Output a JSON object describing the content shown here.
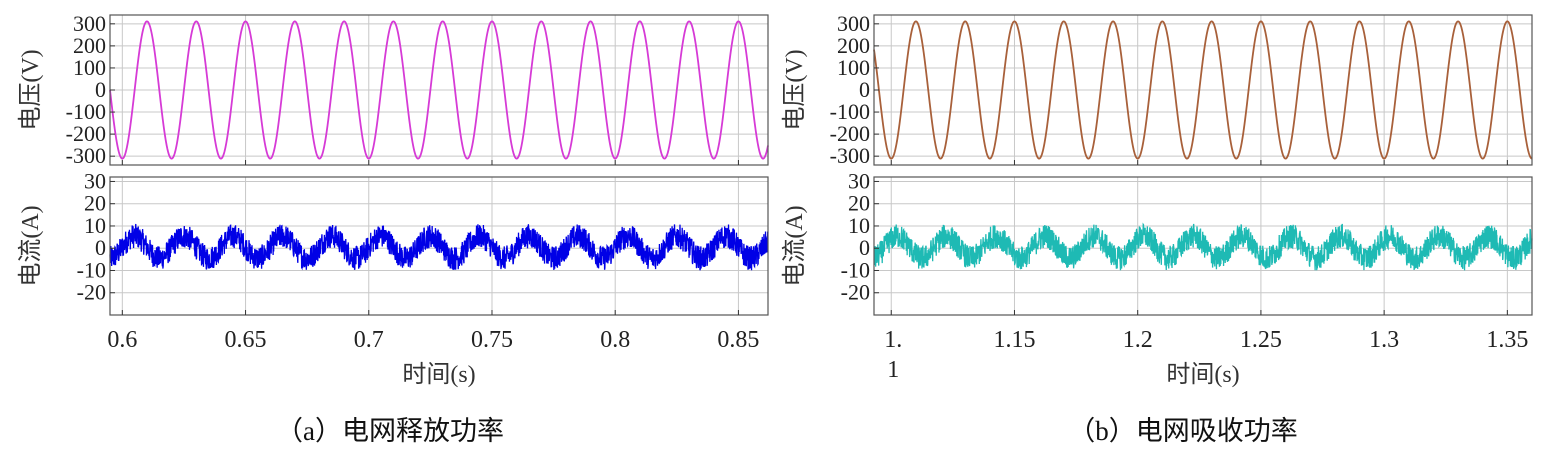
{
  "chart_data": [
    {
      "panel": "a",
      "caption": "（a）电网释放功率",
      "type": "line",
      "xlabel": "时间(s)",
      "xlim": [
        0.595,
        0.862
      ],
      "xticks": [
        0.6,
        0.65,
        0.7,
        0.75,
        0.8,
        0.85
      ],
      "xtick_labels": [
        "0.6",
        "0.65",
        "0.7",
        "0.75",
        "0.8",
        "0.85"
      ],
      "grid": true,
      "subplots": [
        {
          "ylabel": "电压(V)",
          "ylim": [
            -340,
            340
          ],
          "yticks": [
            300,
            200,
            100,
            0,
            -100,
            -200,
            -300
          ],
          "ytick_labels": [
            "300",
            "200",
            "100",
            "0",
            "-100",
            "-200",
            "-300"
          ],
          "series": [
            {
              "kind": "sine",
              "amplitude": 311,
              "frequency_hz": 50,
              "peak_time_s": 0.61,
              "color": "#d63ad6"
            }
          ]
        },
        {
          "ylabel": "电流(A)",
          "ylim": [
            -30,
            32
          ],
          "yticks": [
            30,
            20,
            10,
            0,
            -10,
            -20
          ],
          "ytick_labels": [
            "30",
            "20",
            "10",
            "0",
            "-10",
            "-20"
          ],
          "series": [
            {
              "kind": "noisy-sine",
              "amplitude": 5,
              "frequency_hz": 50,
              "offset": 0.5,
              "noise_band": 11,
              "color": "#0000e6"
            }
          ]
        }
      ]
    },
    {
      "panel": "b",
      "caption": "（b）电网吸收功率",
      "type": "line",
      "xlabel": "时间(s)",
      "xlim": [
        1.093,
        1.36
      ],
      "xticks": [
        1.1,
        1.15,
        1.2,
        1.25,
        1.3,
        1.35
      ],
      "xtick_labels": [
        "1.\n1",
        "1.15",
        "1.2",
        "1.25",
        "1.3",
        "1.35"
      ],
      "grid": true,
      "subplots": [
        {
          "ylabel": "电压(V)",
          "ylim": [
            -340,
            340
          ],
          "yticks": [
            300,
            200,
            100,
            0,
            -100,
            -200,
            -300
          ],
          "ytick_labels": [
            "300",
            "200",
            "100",
            "0",
            "-100",
            "-200",
            "-300"
          ],
          "series": [
            {
              "kind": "sine",
              "amplitude": 311,
              "frequency_hz": 50,
              "peak_time_s": 1.11,
              "color": "#a8603a"
            }
          ]
        },
        {
          "ylabel": "电流(A)",
          "ylim": [
            -30,
            32
          ],
          "yticks": [
            30,
            20,
            10,
            0,
            -10,
            -20
          ],
          "ytick_labels": [
            "30",
            "20",
            "10",
            "0",
            "-10",
            "-20"
          ],
          "series": [
            {
              "kind": "noisy-sine",
              "amplitude": 5,
              "frequency_hz": 50,
              "offset": 0.5,
              "noise_band": 11,
              "color": "#1ebab4"
            }
          ]
        }
      ]
    }
  ]
}
